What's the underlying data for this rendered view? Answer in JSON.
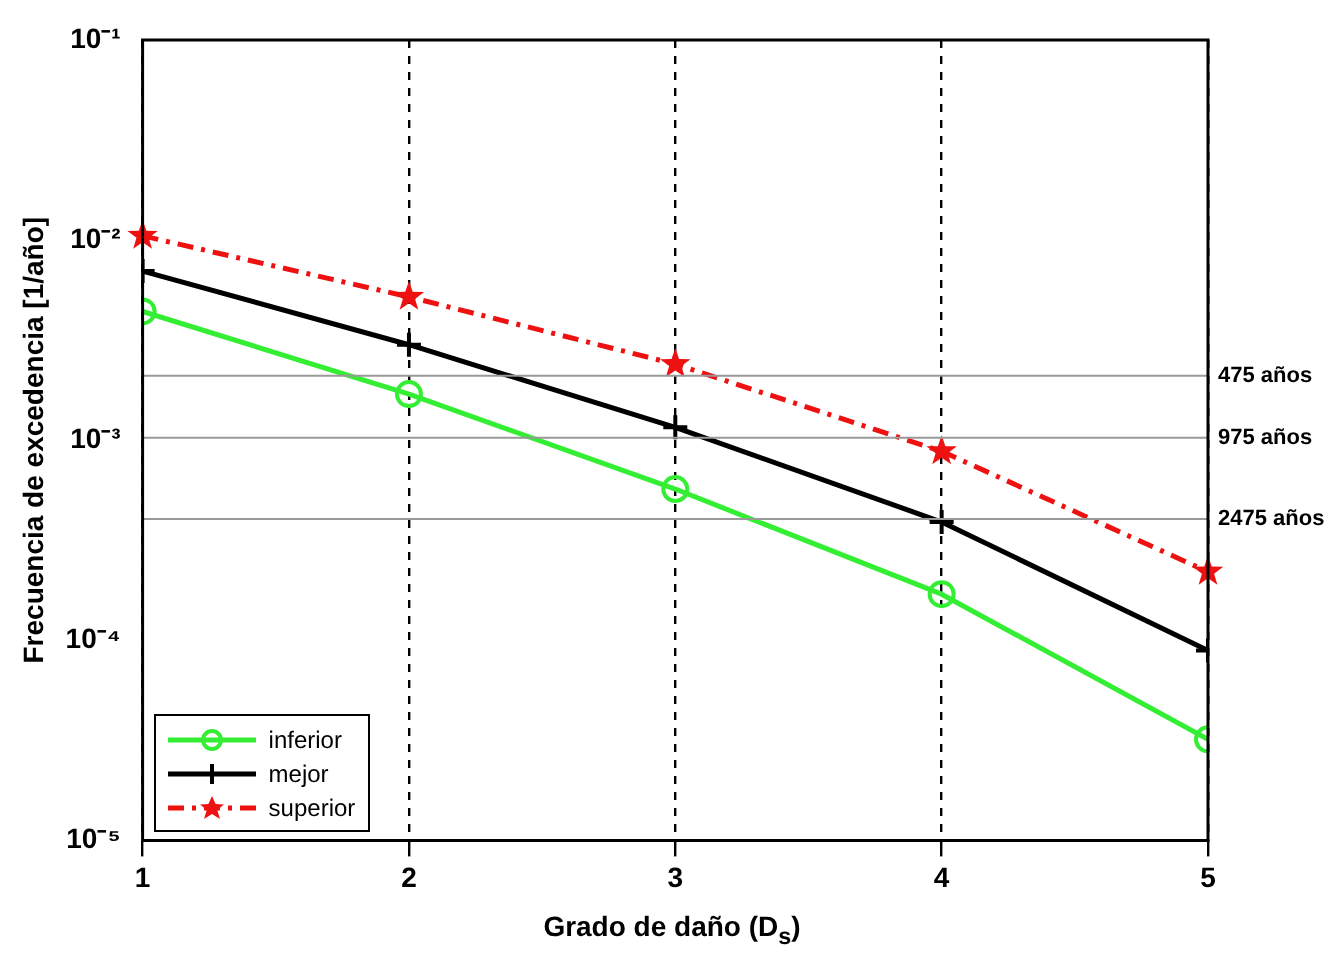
{
  "chart_data": {
    "type": "line",
    "xlabel": "Grado de daño (D$_{s}$)",
    "ylabel": "Frecuencia de excedencia [1/año]",
    "x": [
      1,
      2,
      3,
      4,
      5
    ],
    "xlim": [
      1,
      5
    ],
    "xticks": [
      1,
      2,
      3,
      4,
      5
    ],
    "log": "y",
    "ylim": [
      1e-05,
      0.1
    ],
    "yticks": [
      {
        "value": 1e-05,
        "label": "10⁻⁵"
      },
      {
        "value": 0.0001,
        "label": "10⁻⁴"
      },
      {
        "value": 0.001,
        "label": "10⁻³"
      },
      {
        "value": 0.01,
        "label": "10⁻²"
      },
      {
        "value": 0.1,
        "label": "10⁻¹"
      }
    ],
    "grid": "x",
    "legend": "bottom left",
    "series": [
      {
        "name": "inferior",
        "color": "#33ee33",
        "marker": "circle",
        "line_style": "solid",
        "values": [
          0.0044,
          0.0017,
          0.00057,
          0.00017,
          3.2e-05
        ]
      },
      {
        "name": "mejor",
        "color": "#000000",
        "marker": "cross",
        "line_style": "solid",
        "values": [
          0.007,
          0.003,
          0.00116,
          0.00039,
          8.9e-05
        ]
      },
      {
        "name": "superior",
        "color": "#ee1111",
        "marker": "star",
        "line_style": "dashdot",
        "values": [
          0.0105,
          0.0052,
          0.0024,
          0.00088,
          0.00022
        ]
      }
    ],
    "ref_lines": [
      {
        "axis": "y",
        "value": 0.0021,
        "label": "475 años",
        "color": "#999999"
      },
      {
        "axis": "y",
        "value": 0.00103,
        "label": "975 años",
        "color": "#999999"
      },
      {
        "axis": "y",
        "value": 0.000404,
        "label": "2475 años",
        "color": "#999999"
      }
    ]
  }
}
